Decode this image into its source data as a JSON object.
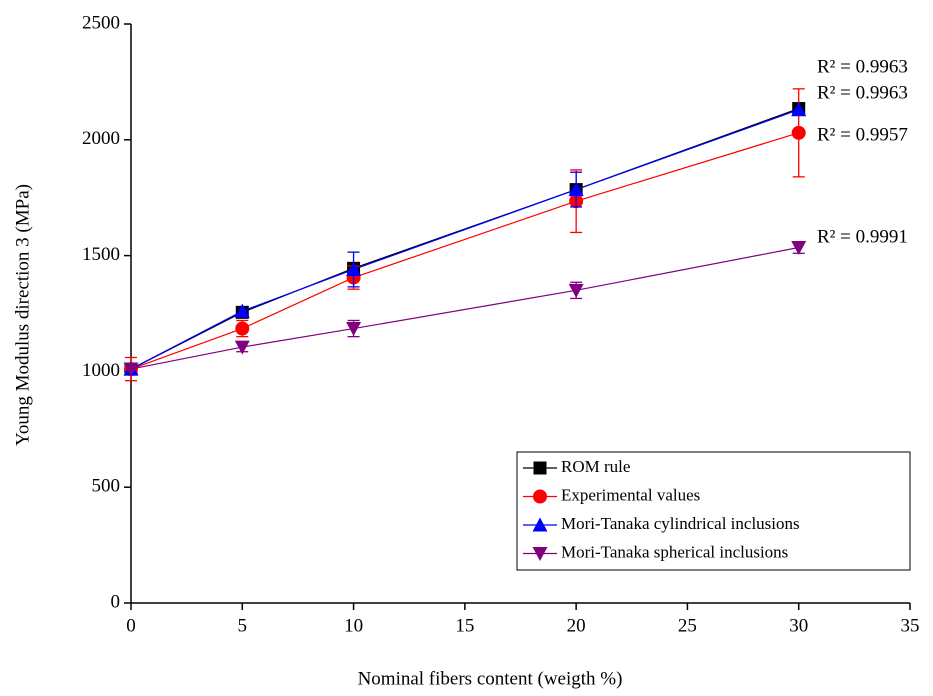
{
  "chart_data": {
    "type": "line",
    "x_label": "Nominal fibers content (weigth %)",
    "y_label": "Young Modulus direction 3 (MPa)",
    "x": [
      0,
      5,
      10,
      20,
      30
    ],
    "series": [
      {
        "name": "ROM rule",
        "color": "#000000",
        "marker": "square",
        "values": [
          1010,
          1255,
          1445,
          1785,
          2135
        ],
        "errors": [
          null,
          null,
          null,
          null,
          null
        ]
      },
      {
        "name": "Experimental values",
        "color": "#ff0000",
        "marker": "circle",
        "values": [
          1010,
          1185,
          1405,
          1735,
          2030
        ],
        "errors": [
          50,
          35,
          50,
          135,
          190
        ]
      },
      {
        "name": "Mori-Tanaka cylindrical inclusions",
        "color": "#0000ff",
        "marker": "triangle-up",
        "values": [
          1010,
          1260,
          1440,
          1785,
          2130
        ],
        "errors": [
          null,
          null,
          75,
          75,
          null
        ]
      },
      {
        "name": "Mori-Tanaka spherical inclusions",
        "color": "#800080",
        "marker": "triangle-down",
        "values": [
          1010,
          1105,
          1185,
          1350,
          1535
        ],
        "errors": [
          null,
          20,
          35,
          35,
          25
        ]
      }
    ],
    "annotations": [
      {
        "text": "R² = 0.9963",
        "color": "#000000"
      },
      {
        "text": "R² = 0.9963",
        "color": "#0000ff"
      },
      {
        "text": "R² = 0.9957",
        "color": "#ff0000"
      },
      {
        "text": "R² = 0.9991",
        "color": "#800080"
      }
    ],
    "xlim": [
      0,
      35
    ],
    "xticks": [
      0,
      5,
      10,
      15,
      20,
      25,
      30,
      35
    ],
    "ylim": [
      0,
      2500
    ],
    "yticks": [
      0,
      500,
      1000,
      1500,
      2000,
      2500
    ],
    "legend": "lower right"
  }
}
